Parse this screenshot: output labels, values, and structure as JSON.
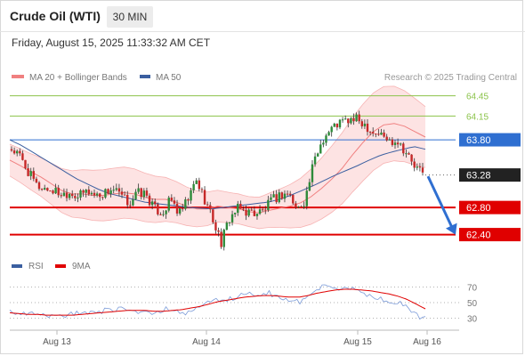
{
  "header": {
    "title": "Crude Oil (WTI)",
    "timeframe": "30 MIN",
    "datetime": "Friday, August 15, 2025 11:33:32 AM CET"
  },
  "legend": {
    "bollinger": "MA 20 + Bollinger Bands",
    "ma50": "MA 50",
    "rsi": "RSI",
    "rsi_ma": "9MA"
  },
  "copyright": "Research © 2025 Trading Central",
  "colors": {
    "up": "#2e8b3a",
    "down": "#c62828",
    "bollinger": "#f08080",
    "ma50": "#3b5fa0",
    "resistance": "#8bc34a",
    "pivot": "#2f6fd1",
    "support": "#e00000",
    "last": "#222222",
    "arrow": "#2f6fd1"
  },
  "chart_data": [
    {
      "type": "line",
      "title": "Crude Oil (WTI) 30 MIN",
      "x_ticks": [
        "Aug 13",
        "Aug 14",
        "Aug 15",
        "Aug 16"
      ],
      "ylim": [
        62.25,
        64.55
      ],
      "levels": [
        {
          "value": 64.45,
          "label": "64.45",
          "role": "resistance"
        },
        {
          "value": 64.15,
          "label": "64.15",
          "role": "resistance"
        },
        {
          "value": 63.8,
          "label": "63.80",
          "role": "pivot"
        },
        {
          "value": 63.28,
          "label": "63.28",
          "role": "last"
        },
        {
          "value": 62.8,
          "label": "62.80",
          "role": "support"
        },
        {
          "value": 62.4,
          "label": "62.40",
          "role": "support"
        }
      ],
      "forecast_arrow": {
        "from": 63.3,
        "to": 62.4
      },
      "series": [
        {
          "name": "Price",
          "kind": "ohlc",
          "close_path": [
            63.66,
            63.55,
            63.32,
            63.12,
            63.08,
            63.05,
            63.0,
            63.03,
            62.96,
            63.05,
            62.98,
            63.01,
            63.08,
            62.97,
            62.86,
            63.02,
            63.0,
            62.78,
            62.72,
            62.92,
            62.7,
            62.9,
            63.2,
            62.93,
            62.62,
            62.28,
            62.65,
            62.78,
            62.74,
            62.72,
            62.75,
            62.9,
            62.98,
            63.02,
            62.76,
            62.92,
            63.45,
            63.8,
            63.95,
            64.05,
            64.08,
            64.1,
            64.05,
            63.92,
            63.88,
            63.78,
            63.8,
            63.62,
            63.4,
            63.3
          ]
        },
        {
          "name": "MA 20 + Bollinger Bands",
          "values": [
            63.5,
            63.42,
            63.33,
            63.25,
            63.15,
            63.05,
            63.0,
            63.0,
            62.98,
            62.98,
            63.0,
            63.02,
            63.0,
            62.95,
            62.92,
            62.92,
            62.88,
            62.82,
            62.78,
            62.78,
            62.82,
            62.8,
            62.78,
            62.74,
            62.72,
            62.76,
            62.79,
            62.82,
            62.87,
            62.96,
            63.08,
            63.22,
            63.38,
            63.58,
            63.76,
            63.92,
            64.02,
            64.04,
            64.0,
            63.92,
            63.84
          ]
        },
        {
          "name": "MA 50",
          "values": [
            63.8,
            63.72,
            63.62,
            63.52,
            63.42,
            63.32,
            63.22,
            63.14,
            63.06,
            63.0,
            62.96,
            62.92,
            62.88,
            62.86,
            62.84,
            62.82,
            62.8,
            62.79,
            62.78,
            62.8,
            62.82,
            62.84,
            62.86,
            62.88,
            62.92,
            62.98,
            63.05,
            63.12,
            63.2,
            63.28,
            63.35,
            63.42,
            63.5,
            63.57,
            63.62,
            63.66,
            63.7,
            63.66
          ]
        }
      ]
    },
    {
      "type": "line",
      "title": "RSI",
      "yticks": [
        30,
        50,
        70
      ],
      "ylim": [
        25,
        75
      ],
      "series": [
        {
          "name": "RSI",
          "values": [
            38,
            37,
            34,
            35,
            33,
            32,
            34,
            33,
            35,
            37,
            38,
            36,
            40,
            39,
            44,
            42,
            37,
            40,
            35,
            39,
            43,
            41,
            34,
            38,
            45,
            48,
            52,
            55,
            54,
            58,
            60,
            61,
            59,
            63,
            57,
            52,
            55,
            51,
            58,
            66,
            70,
            68,
            65,
            69,
            66,
            62,
            60,
            55,
            54,
            50,
            48,
            42,
            33,
            30
          ]
        },
        {
          "name": "9MA",
          "values": [
            37,
            36,
            35,
            35,
            34,
            34,
            34,
            34,
            35,
            36,
            37,
            38,
            39,
            40,
            40,
            40,
            39,
            39,
            40,
            41,
            43,
            45,
            48,
            51,
            53,
            55,
            57,
            58,
            59,
            59,
            58,
            57,
            57,
            59,
            62,
            64,
            66,
            67,
            67,
            66,
            65,
            63,
            61,
            58,
            54,
            48,
            42
          ]
        }
      ]
    }
  ]
}
